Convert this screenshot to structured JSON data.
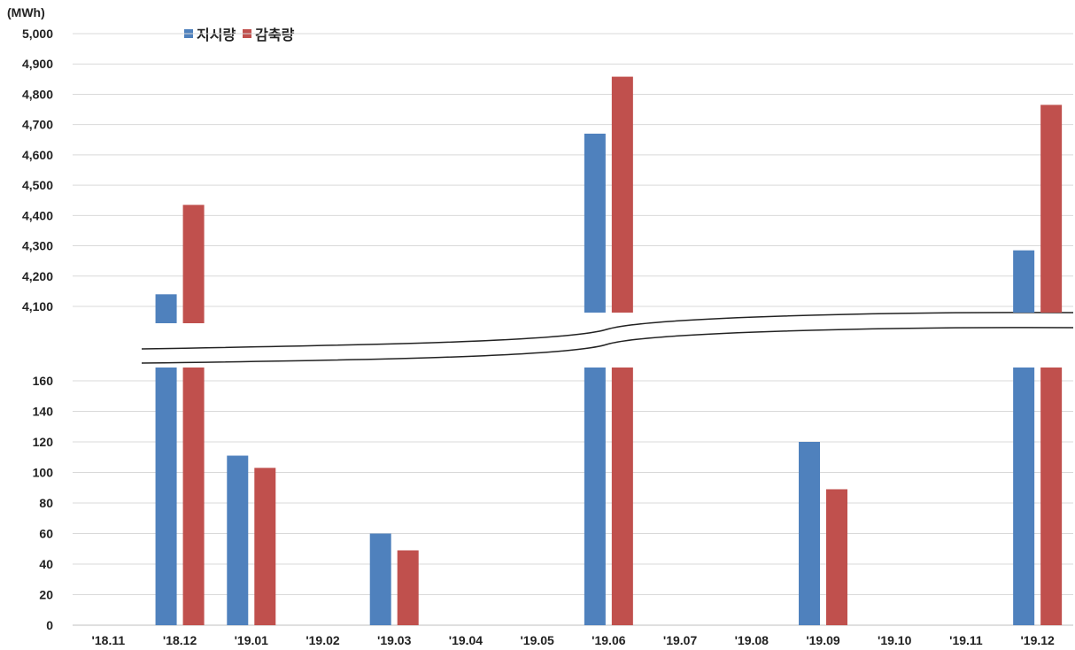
{
  "chart_data": {
    "type": "bar",
    "unit_label": "(MWh)",
    "categories": [
      "'18.11",
      "'18.12",
      "'19.01",
      "'19.02",
      "'19.03",
      "'19.04",
      "'19.05",
      "'19.06",
      "'19.07",
      "'19.08",
      "'19.09",
      "'19.10",
      "'19.11",
      "'19.12"
    ],
    "series": [
      {
        "name": "지시량",
        "color": "#4F81BD",
        "values": [
          0,
          4140,
          111,
          0,
          60,
          0,
          0,
          4670,
          0,
          0,
          120,
          0,
          0,
          4285
        ]
      },
      {
        "name": "감축량",
        "color": "#C0504D",
        "values": [
          0,
          4435,
          103,
          0,
          49,
          0,
          0,
          4858,
          0,
          0,
          89,
          0,
          0,
          4765
        ]
      }
    ],
    "axis_break": true,
    "lower_yticks": [
      0,
      20,
      40,
      60,
      80,
      100,
      120,
      140,
      160
    ],
    "lower_yticks_text": [
      "0",
      "20",
      "40",
      "60",
      "80",
      "100",
      "120",
      "140",
      "160"
    ],
    "upper_yticks": [
      4100,
      4200,
      4300,
      4400,
      4500,
      4600,
      4700,
      4800,
      4900,
      5000
    ],
    "upper_yticks_text": [
      "4,100",
      "4,200",
      "4,300",
      "4,400",
      "4,500",
      "4,600",
      "4,700",
      "4,800",
      "4,900",
      "5,000"
    ],
    "grid": true,
    "legend_position": "top-left"
  }
}
